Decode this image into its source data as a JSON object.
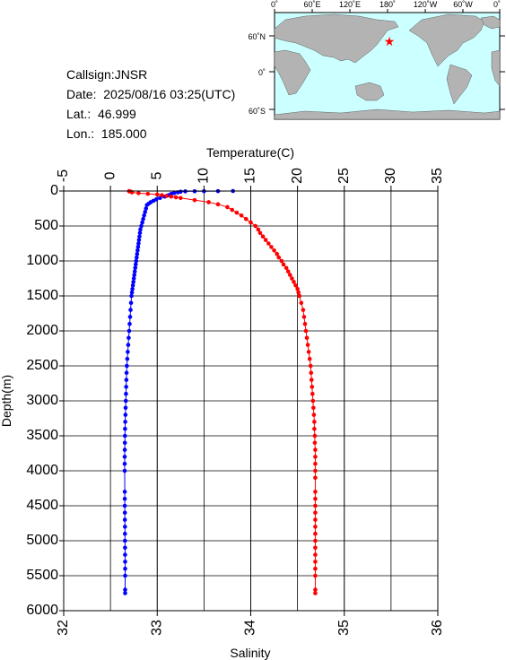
{
  "info": {
    "callsign": "Callsign:JNSR",
    "date": "Date:  2025/08/16 03:25(UTC)",
    "lat": "Lat.:  46.999",
    "lon": "Lon.:  185.000"
  },
  "map": {
    "top_labels": [
      "0˚",
      "60˚E",
      "120˚E",
      "180˚",
      "120˚W",
      "60˚W",
      "0˚"
    ],
    "left_labels": [
      "60˚N",
      "0˚",
      "60˚S"
    ],
    "marker_color": "#ff0000",
    "ocean_color": "#ccffff",
    "land_color": "#b3b3b3"
  },
  "chart_data": {
    "type": "scatter",
    "ylabel": "Depth(m)",
    "ylim": [
      0,
      6000
    ],
    "y_reversed": true,
    "yticks": [
      "0",
      "500",
      "1000",
      "1500",
      "2000",
      "2500",
      "3000",
      "3500",
      "4000",
      "4500",
      "5000",
      "5500",
      "6000"
    ],
    "temperature_axis": {
      "label": "Temperature(C)",
      "position": "top",
      "range": [
        -5,
        35
      ],
      "ticks": [
        "-5",
        "0",
        "5",
        "10",
        "15",
        "20",
        "25",
        "30",
        "35"
      ]
    },
    "salinity_axis": {
      "label": "Salinity",
      "position": "bottom",
      "range": [
        32,
        36
      ],
      "ticks": [
        "32",
        "33",
        "34",
        "35",
        "36"
      ]
    },
    "grid": true,
    "series": [
      {
        "axis": "temperature",
        "color": "#0000ff",
        "points": [
          [
            13.1,
            0
          ],
          [
            11.5,
            2
          ],
          [
            10.0,
            3
          ],
          [
            9.0,
            4
          ],
          [
            8.0,
            5
          ],
          [
            7.5,
            10
          ],
          [
            7.2,
            20
          ],
          [
            6.8,
            30
          ],
          [
            6.5,
            40
          ],
          [
            6.2,
            60
          ],
          [
            5.8,
            80
          ],
          [
            5.3,
            100
          ],
          [
            4.9,
            120
          ],
          [
            4.6,
            140
          ],
          [
            4.3,
            160
          ],
          [
            4.1,
            180
          ],
          [
            3.9,
            200
          ],
          [
            3.8,
            250
          ],
          [
            3.7,
            300
          ],
          [
            3.6,
            350
          ],
          [
            3.5,
            400
          ],
          [
            3.4,
            450
          ],
          [
            3.3,
            500
          ],
          [
            3.2,
            550
          ],
          [
            3.15,
            600
          ],
          [
            3.1,
            650
          ],
          [
            3.05,
            700
          ],
          [
            3.0,
            750
          ],
          [
            2.95,
            800
          ],
          [
            2.9,
            850
          ],
          [
            2.85,
            900
          ],
          [
            2.8,
            950
          ],
          [
            2.75,
            1000
          ],
          [
            2.7,
            1050
          ],
          [
            2.65,
            1100
          ],
          [
            2.6,
            1150
          ],
          [
            2.55,
            1200
          ],
          [
            2.5,
            1250
          ],
          [
            2.45,
            1300
          ],
          [
            2.4,
            1350
          ],
          [
            2.35,
            1400
          ],
          [
            2.3,
            1450
          ],
          [
            2.25,
            1500
          ],
          [
            2.2,
            1600
          ],
          [
            2.15,
            1700
          ],
          [
            2.1,
            1800
          ],
          [
            2.05,
            1900
          ],
          [
            2.0,
            2000
          ],
          [
            1.95,
            2100
          ],
          [
            1.9,
            2200
          ],
          [
            1.85,
            2300
          ],
          [
            1.8,
            2400
          ],
          [
            1.75,
            2500
          ],
          [
            1.72,
            2600
          ],
          [
            1.7,
            2700
          ],
          [
            1.68,
            2800
          ],
          [
            1.66,
            2900
          ],
          [
            1.64,
            3000
          ],
          [
            1.62,
            3100
          ],
          [
            1.6,
            3200
          ],
          [
            1.58,
            3300
          ],
          [
            1.56,
            3400
          ],
          [
            1.55,
            3500
          ],
          [
            1.54,
            3600
          ],
          [
            1.53,
            3700
          ],
          [
            1.52,
            3800
          ],
          [
            1.52,
            3900
          ],
          [
            1.52,
            4000
          ],
          [
            1.53,
            4300
          ],
          [
            1.53,
            4400
          ],
          [
            1.53,
            4500
          ],
          [
            1.54,
            4600
          ],
          [
            1.54,
            4700
          ],
          [
            1.55,
            4800
          ],
          [
            1.55,
            4900
          ],
          [
            1.55,
            5000
          ],
          [
            1.56,
            5100
          ],
          [
            1.56,
            5200
          ],
          [
            1.57,
            5300
          ],
          [
            1.57,
            5400
          ],
          [
            1.57,
            5500
          ],
          [
            1.57,
            5700
          ],
          [
            1.57,
            5750
          ]
        ]
      },
      {
        "axis": "salinity",
        "color": "#ff0000",
        "points": [
          [
            32.7,
            0
          ],
          [
            32.7,
            5
          ],
          [
            32.72,
            10
          ],
          [
            32.73,
            20
          ],
          [
            32.8,
            30
          ],
          [
            32.9,
            40
          ],
          [
            33.0,
            50
          ],
          [
            33.05,
            60
          ],
          [
            33.1,
            70
          ],
          [
            33.15,
            80
          ],
          [
            33.2,
            90
          ],
          [
            33.25,
            100
          ],
          [
            33.4,
            130
          ],
          [
            33.55,
            160
          ],
          [
            33.65,
            190
          ],
          [
            33.75,
            230
          ],
          [
            33.8,
            270
          ],
          [
            33.85,
            310
          ],
          [
            33.9,
            350
          ],
          [
            33.95,
            400
          ],
          [
            34.0,
            450
          ],
          [
            34.05,
            500
          ],
          [
            34.08,
            550
          ],
          [
            34.1,
            600
          ],
          [
            34.13,
            650
          ],
          [
            34.16,
            700
          ],
          [
            34.19,
            750
          ],
          [
            34.22,
            800
          ],
          [
            34.25,
            850
          ],
          [
            34.28,
            900
          ],
          [
            34.3,
            950
          ],
          [
            34.33,
            1000
          ],
          [
            34.35,
            1050
          ],
          [
            34.38,
            1100
          ],
          [
            34.4,
            1150
          ],
          [
            34.42,
            1200
          ],
          [
            34.44,
            1250
          ],
          [
            34.46,
            1300
          ],
          [
            34.48,
            1350
          ],
          [
            34.5,
            1400
          ],
          [
            34.51,
            1450
          ],
          [
            34.52,
            1500
          ],
          [
            34.54,
            1600
          ],
          [
            34.56,
            1700
          ],
          [
            34.57,
            1800
          ],
          [
            34.58,
            1900
          ],
          [
            34.59,
            2000
          ],
          [
            34.6,
            2100
          ],
          [
            34.61,
            2200
          ],
          [
            34.62,
            2300
          ],
          [
            34.63,
            2400
          ],
          [
            34.64,
            2500
          ],
          [
            34.645,
            2600
          ],
          [
            34.65,
            2700
          ],
          [
            34.655,
            2800
          ],
          [
            34.66,
            2900
          ],
          [
            34.665,
            3000
          ],
          [
            34.67,
            3100
          ],
          [
            34.675,
            3200
          ],
          [
            34.68,
            3300
          ],
          [
            34.68,
            3400
          ],
          [
            34.685,
            3500
          ],
          [
            34.685,
            3600
          ],
          [
            34.69,
            3700
          ],
          [
            34.69,
            3800
          ],
          [
            34.69,
            3900
          ],
          [
            34.69,
            4000
          ],
          [
            34.69,
            4100
          ],
          [
            34.69,
            4300
          ],
          [
            34.69,
            4400
          ],
          [
            34.69,
            4500
          ],
          [
            34.69,
            4600
          ],
          [
            34.69,
            4700
          ],
          [
            34.69,
            4800
          ],
          [
            34.69,
            4900
          ],
          [
            34.69,
            5000
          ],
          [
            34.69,
            5100
          ],
          [
            34.69,
            5200
          ],
          [
            34.69,
            5300
          ],
          [
            34.69,
            5400
          ],
          [
            34.69,
            5500
          ],
          [
            34.69,
            5700
          ],
          [
            34.69,
            5750
          ]
        ]
      }
    ]
  }
}
